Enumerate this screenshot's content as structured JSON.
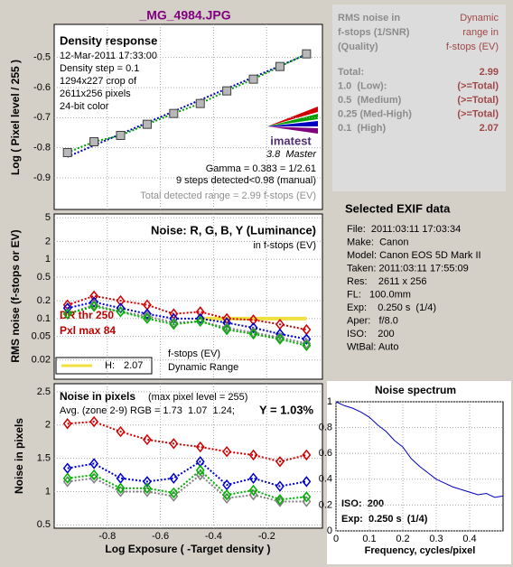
{
  "title": "_MG_4984.JPG",
  "chart_data": [
    {
      "type": "line",
      "title": "Density response",
      "y_label": "Log ( Pixel level / 255 )",
      "notes": [
        "12-Mar-2011 17:33:00",
        "Density step = 0.1",
        "1294x227 crop of",
        "2611x256 pixels",
        "24-bit color"
      ],
      "logo": "imatest",
      "version": "3.8  Master",
      "gamma_text": "Gamma = 0.383 = 1/2.61",
      "steps_text": "9 steps detected<0.98 (manual)",
      "range_text": "Total detected range = 2.99 f-stops (EV)",
      "x": [
        -0.95,
        -0.85,
        -0.75,
        -0.65,
        -0.55,
        -0.45,
        -0.35,
        -0.25,
        -0.15,
        -0.05
      ],
      "series": [
        {
          "color": "#00a000",
          "marker": "square",
          "values": [
            -0.816,
            -0.78,
            -0.759,
            -0.722,
            -0.686,
            -0.653,
            -0.611,
            -0.572,
            -0.53,
            -0.488
          ]
        }
      ],
      "fit": {
        "color": "#0000c0",
        "x": [
          -0.95,
          -0.05
        ],
        "values": [
          -0.83,
          -0.49
        ]
      },
      "xlim": [
        -1.0,
        0.01
      ],
      "ylim": [
        -1.005,
        -0.39
      ],
      "yticks": [
        -0.5,
        -0.6,
        -0.7,
        -0.8,
        -0.9
      ],
      "grid": true
    },
    {
      "type": "line",
      "title": "Noise: R, G, B, Y (Luminance)",
      "subtitle": "in f-stops (EV)",
      "y_label": "RMS noise (f-stops or EV)",
      "log_y": true,
      "dr_thr": "DR thr 250",
      "pxl_max": "Pxl max 84",
      "dr_label": "f-stops (EV)",
      "dr_label2": "Dynamic Range",
      "dr_line": {
        "name": "H:",
        "value": 2.07,
        "color": "#f0e040",
        "level": 0.1,
        "x": [
          -0.45,
          -0.05
        ]
      },
      "x": [
        -0.95,
        -0.85,
        -0.75,
        -0.65,
        -0.55,
        -0.45,
        -0.35,
        -0.25,
        -0.15,
        -0.05
      ],
      "series": [
        {
          "color": "#d00000",
          "marker": "diamond",
          "values": [
            0.17,
            0.24,
            0.2,
            0.17,
            0.12,
            0.13,
            0.1,
            0.095,
            0.08,
            0.065
          ]
        },
        {
          "color": "#0000d0",
          "marker": "diamond",
          "values": [
            0.15,
            0.19,
            0.15,
            0.12,
            0.1,
            0.1,
            0.085,
            0.07,
            0.055,
            0.045
          ]
        },
        {
          "color": "#808080",
          "marker": "diamond",
          "values": [
            0.12,
            0.17,
            0.13,
            0.11,
            0.085,
            0.09,
            0.07,
            0.058,
            0.048,
            0.038
          ]
        },
        {
          "color": "#00b000",
          "marker": "diamond",
          "values": [
            0.12,
            0.16,
            0.13,
            0.1,
            0.08,
            0.09,
            0.065,
            0.055,
            0.045,
            0.035
          ]
        }
      ],
      "xlim": [
        -1.0,
        0.01
      ],
      "ylim": [
        0.0095,
        5.8
      ],
      "yticks": [
        5,
        2,
        1,
        0.5,
        0.2,
        0.1,
        0.05,
        0.02
      ],
      "grid": true
    },
    {
      "type": "line",
      "title": "Noise in pixels",
      "subtitle": "(max pixel level = 255)",
      "avg_text": "Avg. (zone 2-9) RGB = 1.73  1.07  1.24;",
      "y_text": "Y = 1.03%",
      "y_label": "Noise in pixels",
      "x_label": "Log Exposure ( -Target density )",
      "x": [
        -0.95,
        -0.85,
        -0.75,
        -0.65,
        -0.55,
        -0.45,
        -0.35,
        -0.25,
        -0.15,
        -0.05
      ],
      "series": [
        {
          "color": "#d00000",
          "marker": "diamond",
          "values": [
            2.02,
            2.05,
            1.9,
            1.78,
            1.72,
            1.67,
            1.6,
            1.55,
            1.45,
            1.55
          ]
        },
        {
          "color": "#0000d0",
          "marker": "diamond",
          "values": [
            1.35,
            1.42,
            1.2,
            1.15,
            1.2,
            1.45,
            1.1,
            1.2,
            1.08,
            1.15
          ]
        },
        {
          "color": "#808080",
          "marker": "diamond",
          "values": [
            1.15,
            1.2,
            1.0,
            1.0,
            0.93,
            1.25,
            0.9,
            0.95,
            0.85,
            0.85
          ]
        },
        {
          "color": "#00b000",
          "marker": "diamond",
          "values": [
            1.2,
            1.25,
            1.05,
            1.05,
            0.98,
            1.32,
            0.95,
            1.02,
            0.88,
            0.92
          ]
        }
      ],
      "xlim": [
        -1.0,
        0.01
      ],
      "xticks": [
        -0.8,
        -0.6,
        -0.4,
        -0.2
      ],
      "ylim": [
        0.45,
        2.62
      ],
      "yticks": [
        0.5,
        1,
        1.5,
        2,
        2.5
      ],
      "grid": true
    },
    {
      "type": "line",
      "title": "Noise spectrum",
      "x_label": "Frequency, cycles/pixel",
      "iso_text": "ISO:  200",
      "exp_text": "Exp:  0.250 s  (1/4)",
      "x": [
        0,
        0.025,
        0.05,
        0.075,
        0.1,
        0.125,
        0.15,
        0.175,
        0.2,
        0.225,
        0.25,
        0.275,
        0.3,
        0.325,
        0.35,
        0.375,
        0.4,
        0.425,
        0.45,
        0.475,
        0.5
      ],
      "series": [
        {
          "color": "#0000c0",
          "values": [
            1,
            0.97,
            0.95,
            0.92,
            0.88,
            0.82,
            0.77,
            0.7,
            0.65,
            0.56,
            0.5,
            0.45,
            0.4,
            0.37,
            0.34,
            0.32,
            0.3,
            0.28,
            0.29,
            0.26,
            0.27
          ]
        }
      ],
      "xlim": [
        0,
        0.5
      ],
      "xticks": [
        0,
        0.1,
        0.2,
        0.3,
        0.4
      ],
      "ylim": [
        0,
        1
      ],
      "yticks": [
        0,
        0.2,
        0.4,
        0.6,
        0.8,
        1
      ],
      "grid": true
    }
  ],
  "summary": {
    "header_left": [
      "RMS noise in",
      "f-stops (1/SNR)",
      "(Quality)"
    ],
    "header_right": [
      "Dynamic",
      "range in",
      "f-stops (EV)"
    ],
    "rows": [
      [
        "Total:",
        "2.99"
      ],
      [
        "1.0  (Low):",
        "(>=Total)"
      ],
      [
        "0.5  (Medium)",
        "(>=Total)"
      ],
      [
        "0.25 (Med-High)",
        "(>=Total)"
      ],
      [
        "0.1  (High)",
        "2.07"
      ]
    ]
  },
  "exif": {
    "title": "Selected EXIF data",
    "lines": [
      "File:  2011:03:11 17:03:34",
      "Make:  Canon",
      "Model: Canon EOS 5D Mark II",
      "Taken: 2011:03:11 17:55:09",
      "Res:    2611 x 256",
      "FL:   100.0mm",
      "Exp:    0.250 s  (1/4)",
      "Aper:   f/8.0",
      "ISO:    200",
      "WtBal: Auto"
    ]
  }
}
